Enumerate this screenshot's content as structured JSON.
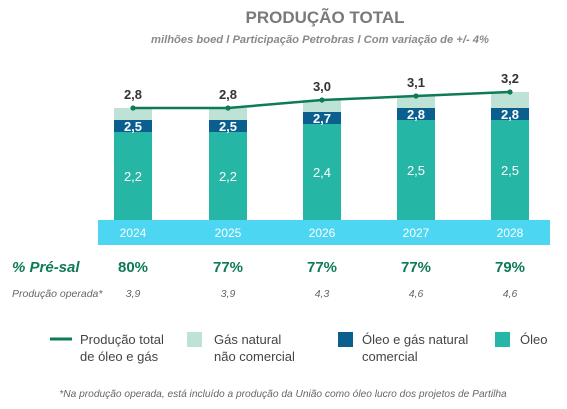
{
  "title": "PRODUÇÃO TOTAL",
  "subtitle": "milhões boed l Participação Petrobras l Com variação de +/- 4%",
  "chart_data": {
    "type": "bar",
    "categories": [
      "2024",
      "2025",
      "2026",
      "2027",
      "2028"
    ],
    "series": [
      {
        "name": "Óleo",
        "values": [
          2.2,
          2.2,
          2.4,
          2.5,
          2.5
        ],
        "labels": [
          "2,2",
          "2,2",
          "2,4",
          "2,5",
          "2,5"
        ],
        "color": "#26B6A6"
      },
      {
        "name": "Óleo e gás natural comercial",
        "values": [
          2.5,
          2.5,
          2.7,
          2.8,
          2.8
        ],
        "labels": [
          "2,5",
          "2,5",
          "2,7",
          "2,8",
          "2,8"
        ],
        "color": "#0B5F8F"
      },
      {
        "name": "Gás natural não comercial",
        "values": [
          2.8,
          2.8,
          3.0,
          3.1,
          3.2
        ],
        "labels": [
          "2,8",
          "2,8",
          "3,0",
          "3,1",
          "3,2"
        ],
        "color": "#BFE2D6"
      },
      {
        "name": "Produção total de óleo e gás",
        "values": [
          2.8,
          2.8,
          3.0,
          3.1,
          3.2
        ],
        "labels": [
          "2,8",
          "2,8",
          "3,0",
          "3,1",
          "3,2"
        ],
        "color": "#0E7B55",
        "type": "line"
      }
    ],
    "xlabel": "",
    "ylabel": "",
    "ylim": [
      0,
      3.4
    ]
  },
  "kpis": {
    "pre_sal_label": "% Pré-sal",
    "pre_sal_values": [
      "80%",
      "77%",
      "77%",
      "77%",
      "79%"
    ],
    "operated_label": "Produção operada*",
    "operated_values": [
      "3,9",
      "3,9",
      "4,3",
      "4,6",
      "4,6"
    ]
  },
  "legend": {
    "items": [
      {
        "name": "Produção total",
        "name2": "de óleo e gás",
        "type": "line",
        "color": "#0E7B55"
      },
      {
        "name": "Gás natural",
        "name2": "não comercial",
        "type": "box",
        "color": "#BFE2D6"
      },
      {
        "name": "Óleo e gás natural",
        "name2": "comercial",
        "type": "box",
        "color": "#0B5F8F"
      },
      {
        "name": "Óleo",
        "name2": "",
        "type": "box",
        "color": "#26B6A6"
      }
    ]
  },
  "note": "*Na produção operada, está incluído a produção da União como óleo lucro dos projetos de Partilha",
  "colors": {
    "title": "#7A7A7A",
    "subtitle": "#8A8A8A",
    "axis_band": "#4DD6F2",
    "green_text": "#0E7B55",
    "gray_text": "#666666",
    "dark_text": "#333333"
  }
}
